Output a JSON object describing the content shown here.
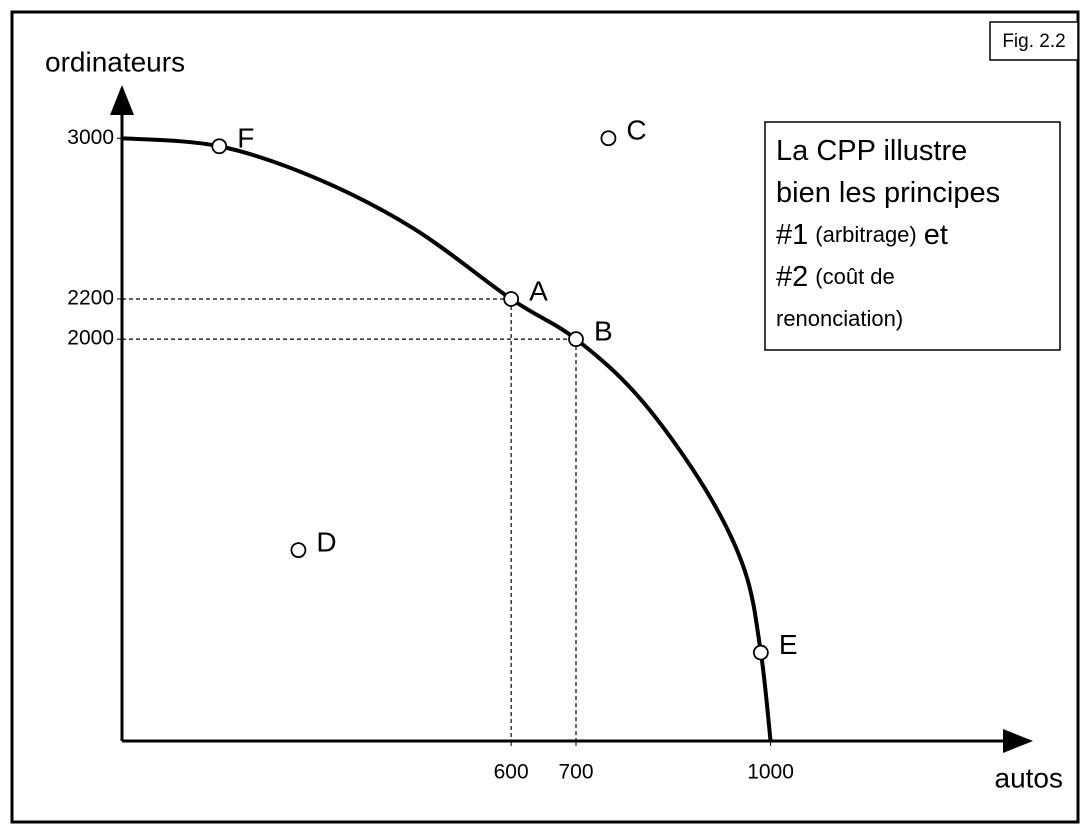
{
  "chart_data": {
    "type": "line",
    "figure_label": "Fig. 2.2",
    "y_label": "ordinateurs",
    "x_label": "autos",
    "xlim": [
      0,
      1400
    ],
    "ylim": [
      0,
      3250
    ],
    "xticks": [
      600,
      700,
      1000
    ],
    "yticks": [
      2000,
      2200,
      3000
    ],
    "color": "#000000",
    "x": [
      0,
      150,
      300,
      450,
      600,
      700,
      800,
      900,
      960,
      985,
      1000
    ],
    "values": [
      3000,
      2960,
      2800,
      2550,
      2200,
      2000,
      1700,
      1250,
      850,
      440,
      0
    ],
    "points": [
      {
        "name": "F",
        "x": 150,
        "y": 2960
      },
      {
        "name": "C",
        "x": 750,
        "y": 3000
      },
      {
        "name": "A",
        "x": 600,
        "y": 2200
      },
      {
        "name": "B",
        "x": 700,
        "y": 2000
      },
      {
        "name": "D",
        "x": 272,
        "y": 950
      },
      {
        "name": "E",
        "x": 985,
        "y": 440
      }
    ],
    "guides": [
      "A",
      "B"
    ],
    "annotation": [
      [
        {
          "text": "La CPP illustre",
          "size": "large"
        }
      ],
      [
        {
          "text": "bien les principes",
          "size": "large"
        }
      ],
      [
        {
          "text": "#1",
          "size": "large"
        },
        {
          "text": "(arbitrage)",
          "size": "small"
        },
        {
          "text": "et",
          "size": "large"
        }
      ],
      [
        {
          "text": "#2",
          "size": "large"
        },
        {
          "text": "(coût de",
          "size": "small"
        }
      ],
      [
        {
          "text": "renonciation)",
          "size": "small"
        }
      ]
    ]
  }
}
